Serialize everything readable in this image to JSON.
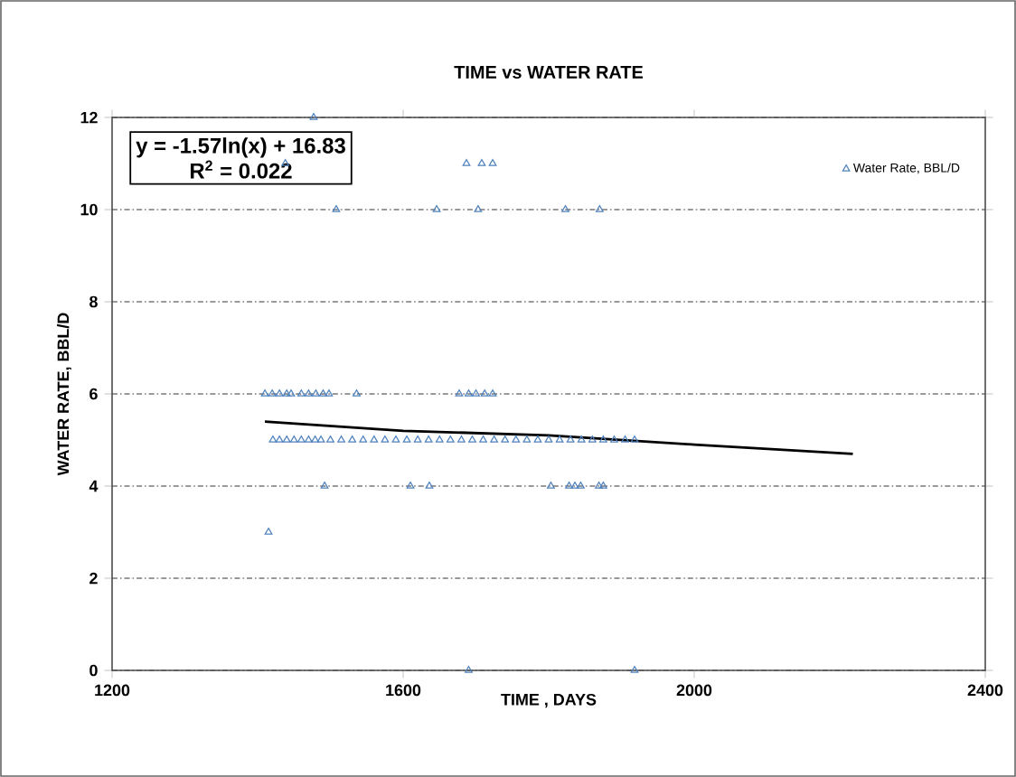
{
  "chart_data": {
    "type": "scatter",
    "title": "TIME vs WATER RATE",
    "xlabel": "TIME , DAYS",
    "ylabel": "WATER  RATE, BBL/D",
    "xlim": [
      1200,
      2400
    ],
    "xticks": [
      1200,
      1600,
      2000,
      2400
    ],
    "ylim": [
      0,
      12
    ],
    "yticks": [
      0,
      2,
      4,
      6,
      8,
      10,
      12
    ],
    "grid": "y",
    "legend": "top right",
    "annotations": [
      "y = -1.57ln(x) + 16.83",
      "R$^{2}$ = 0.022"
    ],
    "series": [
      {
        "name": "Water Rate, BBL/D",
        "color": "#4f81bd",
        "marker": "triangle",
        "x": [
          1477,
          1438,
          1687,
          1708,
          1723,
          1508,
          1646,
          1703,
          1823,
          1870,
          1410,
          1420,
          1430,
          1440,
          1446,
          1460,
          1470,
          1480,
          1490,
          1498,
          1536,
          1677,
          1690,
          1700,
          1712,
          1723,
          1421,
          1430,
          1440,
          1450,
          1460,
          1470,
          1479,
          1487,
          1500,
          1515,
          1530,
          1545,
          1560,
          1575,
          1590,
          1605,
          1620,
          1635,
          1650,
          1665,
          1680,
          1695,
          1710,
          1725,
          1740,
          1755,
          1770,
          1785,
          1800,
          1815,
          1830,
          1845,
          1860,
          1875,
          1890,
          1905,
          1918,
          1492,
          1610,
          1636,
          1803,
          1828,
          1836,
          1844,
          1869,
          1875,
          1415,
          1690,
          1918
        ],
        "values": [
          12,
          11,
          11,
          11,
          11,
          10,
          10,
          10,
          10,
          10,
          6,
          6,
          6,
          6,
          6,
          6,
          6,
          6,
          6,
          6,
          6,
          6,
          6,
          6,
          6,
          6,
          5,
          5,
          5,
          5,
          5,
          5,
          5,
          5,
          5,
          5,
          5,
          5,
          5,
          5,
          5,
          5,
          5,
          5,
          5,
          5,
          5,
          5,
          5,
          5,
          5,
          5,
          5,
          5,
          5,
          5,
          5,
          5,
          5,
          5,
          5,
          5,
          5,
          4,
          4,
          4,
          4,
          4,
          4,
          4,
          4,
          4,
          3,
          0,
          0
        ]
      },
      {
        "color": "#000000",
        "type": "line",
        "marker": "none",
        "x": [
          1410,
          1600,
          1800,
          2000,
          2218
        ],
        "values": [
          5.4,
          5.2,
          5.1,
          4.9,
          4.7
        ]
      }
    ]
  }
}
